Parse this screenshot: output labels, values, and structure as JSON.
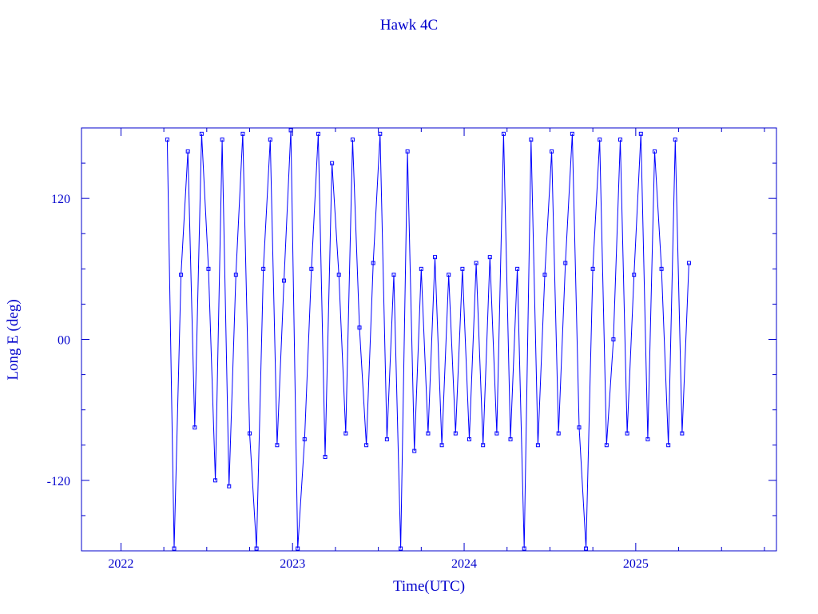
{
  "chart_data": {
    "type": "line",
    "title": "Hawk 4C",
    "x_label": "Time(UTC)",
    "y_label": "Long E (deg)",
    "xlim": [
      2021.77,
      2025.82
    ],
    "ylim": [
      -180,
      180
    ],
    "xticks": [
      2022,
      2023,
      2024,
      2025
    ],
    "xminorticks": [
      2021.75,
      2022.25,
      2022.5,
      2022.75,
      2023.25,
      2023.5,
      2023.75,
      2024.25,
      2024.5,
      2024.75,
      2025.25,
      2025.5,
      2025.75
    ],
    "yticks": [
      -120,
      {
        "value": 0,
        "label": "00"
      },
      120
    ],
    "yminorticks": [
      -150,
      -90,
      -60,
      -30,
      30,
      60,
      90,
      150
    ],
    "x": [
      2022.27,
      2022.31,
      2022.35,
      2022.39,
      2022.43,
      2022.47,
      2022.51,
      2022.55,
      2022.59,
      2022.63,
      2022.67,
      2022.71,
      2022.75,
      2022.79,
      2022.83,
      2022.87,
      2022.91,
      2022.95,
      2022.99,
      2023.03,
      2023.07,
      2023.11,
      2023.15,
      2023.19,
      2023.23,
      2023.27,
      2023.31,
      2023.35,
      2023.39,
      2023.43,
      2023.47,
      2023.51,
      2023.55,
      2023.59,
      2023.63,
      2023.67,
      2023.71,
      2023.75,
      2023.79,
      2023.83,
      2023.87,
      2023.91,
      2023.95,
      2023.99,
      2024.03,
      2024.07,
      2024.11,
      2024.15,
      2024.19,
      2024.23,
      2024.27,
      2024.31,
      2024.35,
      2024.39,
      2024.43,
      2024.47,
      2024.51,
      2024.55,
      2024.59,
      2024.63,
      2024.67,
      2024.71,
      2024.75,
      2024.79,
      2024.83,
      2024.87,
      2024.91,
      2024.95,
      2024.99,
      2025.03,
      2025.07,
      2025.11,
      2025.15,
      2025.19,
      2025.23,
      2025.27,
      2025.31
    ],
    "series": [
      {
        "color": "#0000ff",
        "values": [
          170,
          -178,
          55,
          160,
          -75,
          175,
          60,
          -120,
          170,
          -125,
          55,
          175,
          -80,
          -178,
          60,
          170,
          -90,
          50,
          178,
          -178,
          -85,
          60,
          175,
          -100,
          150,
          55,
          -80,
          170,
          10,
          -90,
          65,
          175,
          -85,
          55,
          -178,
          160,
          -95,
          60,
          -80,
          70,
          -90,
          55,
          -80,
          60,
          -85,
          65,
          -90,
          70,
          -80,
          175,
          -85,
          60,
          -178,
          170,
          -90,
          55,
          160,
          -80,
          65,
          175,
          -75,
          -178,
          60,
          170,
          -90,
          0,
          170,
          -80,
          55,
          175,
          -85,
          160,
          60,
          -90,
          170,
          -80,
          65
        ]
      }
    ],
    "axis_color": "#0000cc"
  }
}
